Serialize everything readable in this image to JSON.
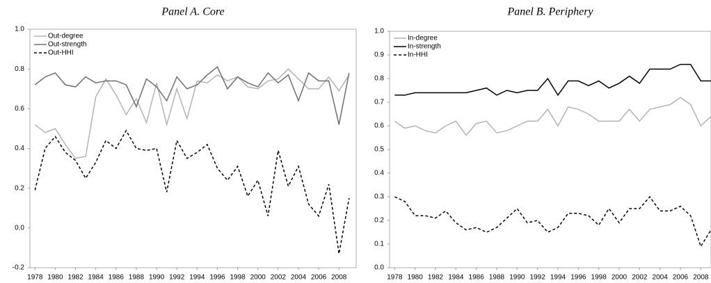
{
  "chart_data": [
    {
      "type": "line",
      "title": "Panel A. Core",
      "x": [
        1978,
        1979,
        1980,
        1981,
        1982,
        1983,
        1984,
        1985,
        1986,
        1987,
        1988,
        1989,
        1990,
        1991,
        1992,
        1993,
        1994,
        1995,
        1996,
        1997,
        1998,
        1999,
        2000,
        2001,
        2002,
        2003,
        2004,
        2005,
        2006,
        2007,
        2008,
        2009
      ],
      "xlim": [
        1977.5,
        2009.7
      ],
      "xticks": [
        1978,
        1980,
        1982,
        1984,
        1986,
        1988,
        1990,
        1992,
        1994,
        1996,
        1998,
        2000,
        2002,
        2004,
        2006,
        2008
      ],
      "ylim": [
        -0.2,
        1.0
      ],
      "yticks": [
        {
          "value": -0.2,
          "label": "-0.2"
        },
        {
          "value": 0,
          "label": "0.0"
        },
        0.2,
        0.4,
        0.6,
        0.8,
        {
          "value": 1,
          "label": "1.0"
        }
      ],
      "legend": "upper left",
      "series": [
        {
          "name": "Out-degree",
          "color": "#b3b3b3",
          "dashed": false,
          "values": [
            0.52,
            0.48,
            0.5,
            0.42,
            0.35,
            0.36,
            0.66,
            0.75,
            0.67,
            0.57,
            0.65,
            0.53,
            0.73,
            0.52,
            0.7,
            0.55,
            0.74,
            0.73,
            0.77,
            0.74,
            0.76,
            0.71,
            0.7,
            0.74,
            0.75,
            0.8,
            0.75,
            0.7,
            0.7,
            0.76,
            0.69,
            0.77
          ]
        },
        {
          "name": "Out-strength",
          "color": "#6e6e6e",
          "dashed": false,
          "values": [
            0.72,
            0.76,
            0.78,
            0.72,
            0.71,
            0.76,
            0.73,
            0.74,
            0.74,
            0.72,
            0.61,
            0.75,
            0.71,
            0.64,
            0.76,
            0.7,
            0.72,
            0.77,
            0.81,
            0.7,
            0.76,
            0.73,
            0.71,
            0.78,
            0.73,
            0.77,
            0.64,
            0.78,
            0.74,
            0.74,
            0.52,
            0.78
          ]
        },
        {
          "name": "Out-HHI",
          "color": "#000000",
          "dashed": true,
          "values": [
            0.19,
            0.4,
            0.46,
            0.38,
            0.34,
            0.25,
            0.33,
            0.44,
            0.4,
            0.49,
            0.4,
            0.39,
            0.4,
            0.18,
            0.44,
            0.35,
            0.38,
            0.42,
            0.3,
            0.24,
            0.31,
            0.16,
            0.24,
            0.06,
            0.39,
            0.21,
            0.31,
            0.12,
            0.06,
            0.22,
            -0.13,
            0.15
          ]
        }
      ]
    },
    {
      "type": "line",
      "title": "Panel B. Periphery",
      "x": [
        1978,
        1979,
        1980,
        1981,
        1982,
        1983,
        1984,
        1985,
        1986,
        1987,
        1988,
        1989,
        1990,
        1991,
        1992,
        1993,
        1994,
        1995,
        1996,
        1997,
        1998,
        1999,
        2000,
        2001,
        2002,
        2003,
        2004,
        2005,
        2006,
        2007,
        2008,
        2009
      ],
      "xlim": [
        1977.5,
        2009
      ],
      "xticks": [
        1978,
        1980,
        1982,
        1984,
        1986,
        1988,
        1990,
        1992,
        1994,
        1996,
        1998,
        2000,
        2002,
        2004,
        2006,
        2008
      ],
      "ylim": [
        0,
        1.0
      ],
      "yticks": [
        {
          "value": 0,
          "label": "0.0"
        },
        0.1,
        0.2,
        0.3,
        0.4,
        0.5,
        0.6,
        0.7,
        0.8,
        0.9,
        {
          "value": 1,
          "label": "1.0"
        }
      ],
      "legend": "upper left",
      "series": [
        {
          "name": "In-degree",
          "color": "#b3b3b3",
          "dashed": false,
          "values": [
            0.62,
            0.59,
            0.6,
            0.58,
            0.57,
            0.6,
            0.62,
            0.56,
            0.61,
            0.62,
            0.57,
            0.58,
            0.6,
            0.62,
            0.62,
            0.67,
            0.6,
            0.68,
            0.67,
            0.65,
            0.62,
            0.62,
            0.62,
            0.67,
            0.62,
            0.67,
            0.68,
            0.69,
            0.72,
            0.69,
            0.6,
            0.64
          ]
        },
        {
          "name": "In-strength",
          "color": "#000000",
          "dashed": false,
          "values": [
            0.73,
            0.73,
            0.74,
            0.74,
            0.74,
            0.74,
            0.74,
            0.74,
            0.75,
            0.76,
            0.73,
            0.75,
            0.74,
            0.75,
            0.75,
            0.8,
            0.73,
            0.79,
            0.79,
            0.77,
            0.79,
            0.76,
            0.78,
            0.81,
            0.78,
            0.84,
            0.84,
            0.84,
            0.86,
            0.86,
            0.79,
            0.79
          ]
        },
        {
          "name": "In-HHI",
          "color": "#000000",
          "dashed": true,
          "values": [
            0.3,
            0.28,
            0.22,
            0.22,
            0.21,
            0.24,
            0.19,
            0.16,
            0.17,
            0.15,
            0.17,
            0.21,
            0.25,
            0.19,
            0.2,
            0.15,
            0.17,
            0.23,
            0.23,
            0.22,
            0.18,
            0.25,
            0.19,
            0.25,
            0.25,
            0.3,
            0.24,
            0.24,
            0.26,
            0.22,
            0.09,
            0.16
          ]
        }
      ]
    }
  ]
}
